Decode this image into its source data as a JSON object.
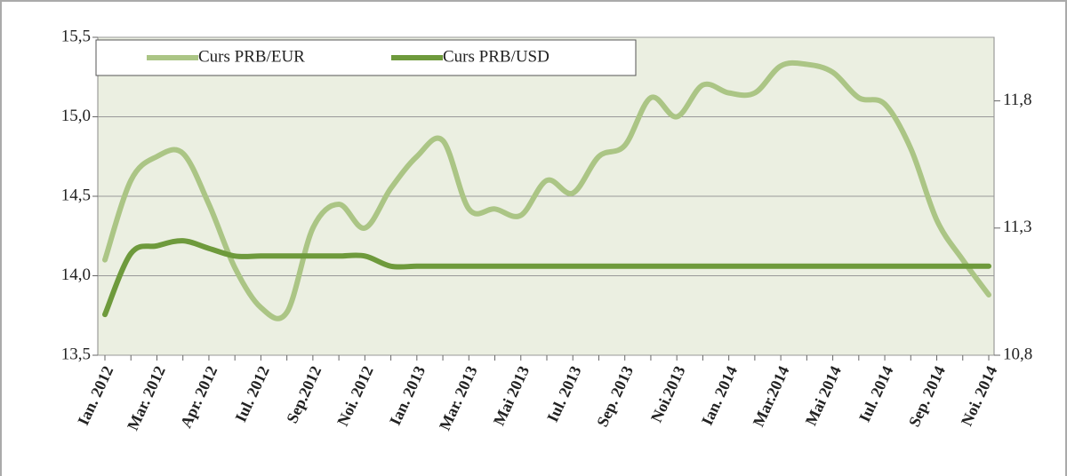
{
  "chart_data": {
    "type": "line",
    "categories": [
      "Ian. 2012",
      null,
      "Mar. 2012",
      null,
      "Apr. 2012",
      null,
      "Iul. 2012",
      null,
      "Sep.2012",
      null,
      "Noi. 2012",
      null,
      "Ian. 2013",
      null,
      "Mar. 2013",
      null,
      "Mai 2013",
      null,
      "Iul. 2013",
      null,
      "Sep. 2013",
      null,
      "Noi.2013",
      null,
      "Ian. 2014",
      null,
      "Mar.2014",
      null,
      "Mai 2014",
      null,
      "Iul. 2014",
      null,
      "Sep. 2014",
      null,
      "Noi. 2014"
    ],
    "series": [
      {
        "name": "Curs PRB/EUR",
        "color": "#abc585",
        "values": [
          14.1,
          14.6,
          14.75,
          14.77,
          14.45,
          14.05,
          13.8,
          13.77,
          14.3,
          14.45,
          14.3,
          14.55,
          14.75,
          14.85,
          14.42,
          14.42,
          14.38,
          14.6,
          14.52,
          14.75,
          14.82,
          15.12,
          15.0,
          15.2,
          15.15,
          15.15,
          15.32,
          15.33,
          15.28,
          15.12,
          15.08,
          14.8,
          14.35,
          14.1,
          13.88
        ]
      },
      {
        "name": "Curs PRB/USD",
        "color": "#6e9a3c",
        "axis": "y2",
        "values": [
          10.96,
          11.2,
          11.23,
          11.25,
          11.22,
          11.19,
          11.19,
          11.19,
          11.19,
          11.19,
          11.19,
          11.15,
          11.15,
          11.15,
          11.15,
          11.15,
          11.15,
          11.15,
          11.15,
          11.15,
          11.15,
          11.15,
          11.15,
          11.15,
          11.15,
          11.15,
          11.15,
          11.15,
          11.15,
          11.15,
          11.15,
          11.15,
          11.15,
          11.15,
          11.15
        ]
      }
    ],
    "ylim": [
      13.5,
      15.5
    ],
    "yticks": [
      {
        "value": 13.5,
        "label": "13,5"
      },
      {
        "value": 14.0,
        "label": "14,0"
      },
      {
        "value": 14.5,
        "label": "14,5"
      },
      {
        "value": 15.0,
        "label": "15,0"
      },
      {
        "value": 15.5,
        "label": "15,5"
      }
    ],
    "y2lim": [
      10.8,
      12.05
    ],
    "y2ticks": [
      {
        "value": 10.8,
        "label": "10,8"
      },
      {
        "value": 11.3,
        "label": "11,3"
      },
      {
        "value": 11.8,
        "label": "11,8"
      }
    ],
    "grid": true,
    "legend": "top"
  }
}
